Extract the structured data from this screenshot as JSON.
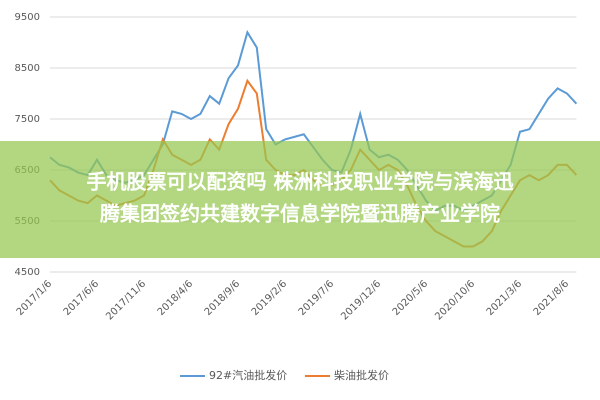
{
  "chart_data": {
    "type": "line",
    "categories": [
      "2017/1/6",
      null,
      null,
      null,
      null,
      "2017/6/6",
      null,
      null,
      null,
      null,
      "2017/11/6",
      null,
      null,
      null,
      null,
      "2018/4/6",
      null,
      null,
      null,
      null,
      "2018/9/6",
      null,
      null,
      null,
      null,
      "2019/2/6",
      null,
      null,
      null,
      null,
      "2019/7/6",
      null,
      null,
      null,
      null,
      "2019/12/6",
      null,
      null,
      null,
      null,
      "2020/5/6",
      null,
      null,
      null,
      null,
      "2020/10/6",
      null,
      null,
      null,
      null,
      "2021/3/6",
      null,
      null,
      null,
      null,
      "2021/8/6",
      null
    ],
    "series": [
      {
        "name": "92#汽油批发价",
        "color": "#5b9bd5",
        "values": [
          6750,
          6600,
          6550,
          6450,
          6400,
          6700,
          6400,
          6300,
          6250,
          6300,
          6400,
          6700,
          7000,
          7650,
          7600,
          7500,
          7600,
          7950,
          7800,
          8300,
          8550,
          9200,
          8900,
          7300,
          7000,
          7100,
          7150,
          7200,
          6950,
          6700,
          6500,
          6450,
          6900,
          7600,
          6900,
          6750,
          6800,
          6700,
          6500,
          6200,
          5900,
          5700,
          5800,
          5800,
          5700,
          5800,
          5900,
          6000,
          6300,
          6600,
          7250,
          7300,
          7600,
          7900,
          8100,
          8000,
          7800
        ]
      },
      {
        "name": "柴油批发价",
        "color": "#ed7d31",
        "values": [
          6300,
          6100,
          6000,
          5900,
          5850,
          6000,
          5900,
          5800,
          5850,
          5900,
          6000,
          6500,
          7100,
          6800,
          6700,
          6600,
          6700,
          7100,
          6900,
          7400,
          7700,
          8250,
          8000,
          6700,
          6500,
          6400,
          6400,
          6500,
          6300,
          6200,
          6200,
          6300,
          6500,
          6900,
          6700,
          6500,
          6600,
          6500,
          6200,
          5800,
          5500,
          5300,
          5200,
          5100,
          5000,
          5000,
          5100,
          5300,
          5700,
          6000,
          6300,
          6400,
          6300,
          6400,
          6600,
          6600,
          6400
        ]
      }
    ],
    "ylim": [
      4500,
      9500
    ],
    "yticks": [
      4500,
      5500,
      6500,
      7500,
      8500,
      9500
    ],
    "grid": true,
    "legend": "bottom",
    "overlay_text": [
      "手机股票可以配资吗 株洲科技职业学院与滨海迅",
      "腾集团签约共建数字信息学院暨迅腾产业学院"
    ],
    "overlay_color": "rgba(150,200,80,0.72)"
  }
}
